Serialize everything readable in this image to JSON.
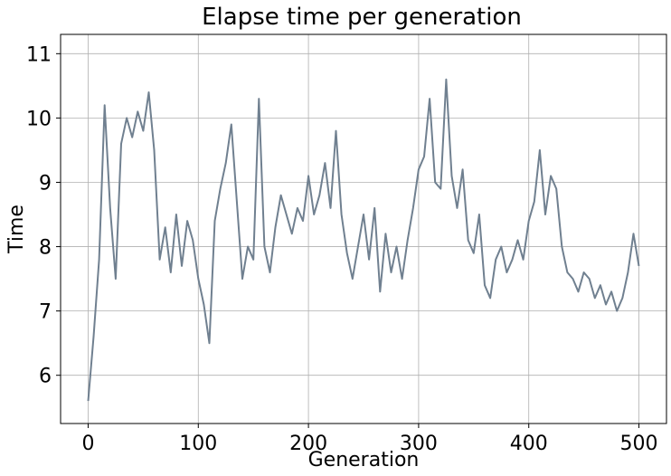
{
  "chart_data": {
    "type": "line",
    "title": "Elapse time per generation",
    "xlabel": "Generation",
    "ylabel": "Time",
    "xlim": [
      -25,
      525
    ],
    "ylim": [
      5.25,
      11.3
    ],
    "xticks": [
      0,
      100,
      200,
      300,
      400,
      500
    ],
    "yticks": [
      6,
      7,
      8,
      9,
      10,
      11
    ],
    "grid": true,
    "line_color": "#708090",
    "series": [
      {
        "x": [
          0,
          5,
          10,
          15,
          20,
          25,
          30,
          35,
          40,
          45,
          50,
          55,
          60,
          65,
          70,
          75,
          80,
          85,
          90,
          95,
          100,
          105,
          110,
          115,
          120,
          125,
          130,
          135,
          140,
          145,
          150,
          155,
          160,
          165,
          170,
          175,
          180,
          185,
          190,
          195,
          200,
          205,
          210,
          215,
          220,
          225,
          230,
          235,
          240,
          245,
          250,
          255,
          260,
          265,
          270,
          275,
          280,
          285,
          290,
          295,
          300,
          305,
          310,
          315,
          320,
          325,
          330,
          335,
          340,
          345,
          350,
          355,
          360,
          365,
          370,
          375,
          380,
          385,
          390,
          395,
          400,
          405,
          410,
          415,
          420,
          425,
          430,
          435,
          440,
          445,
          450,
          455,
          460,
          465,
          470,
          475,
          480,
          485,
          490,
          495,
          500
        ],
        "y": [
          5.6,
          6.6,
          7.8,
          10.2,
          8.6,
          7.5,
          9.6,
          10.0,
          9.7,
          10.1,
          9.8,
          10.4,
          9.5,
          7.8,
          8.3,
          7.6,
          8.5,
          7.7,
          8.4,
          8.1,
          7.5,
          7.1,
          6.5,
          8.4,
          8.9,
          9.3,
          9.9,
          8.7,
          7.5,
          8.0,
          7.8,
          10.3,
          8.0,
          7.6,
          8.3,
          8.8,
          8.5,
          8.2,
          8.6,
          8.4,
          9.1,
          8.5,
          8.8,
          9.3,
          8.6,
          9.8,
          8.5,
          7.9,
          7.5,
          8.0,
          8.5,
          7.8,
          8.6,
          7.3,
          8.2,
          7.6,
          8.0,
          7.5,
          8.1,
          8.6,
          9.2,
          9.4,
          10.3,
          9.0,
          8.9,
          10.6,
          9.1,
          8.6,
          9.2,
          8.1,
          7.9,
          8.5,
          7.4,
          7.2,
          7.8,
          8.0,
          7.6,
          7.8,
          8.1,
          7.8,
          8.4,
          8.7,
          9.5,
          8.5,
          9.1,
          8.9,
          8.0,
          7.6,
          7.5,
          7.3,
          7.6,
          7.5,
          7.2,
          7.4,
          7.1,
          7.3,
          7.0,
          7.2,
          7.6,
          8.2,
          7.7
        ]
      }
    ]
  }
}
